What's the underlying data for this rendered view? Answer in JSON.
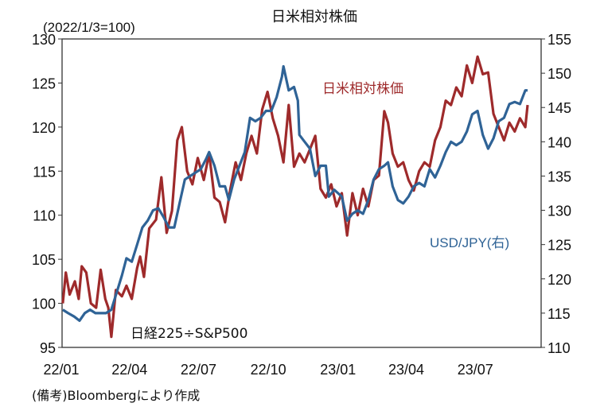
{
  "chart_data": {
    "type": "line",
    "title": "日米相対株価",
    "left_axis_label": "(2022/1/3=100)",
    "source_note": "(備考)Bloombergにより作成",
    "ylim_left": [
      95,
      130
    ],
    "ylim_right": [
      110,
      155
    ],
    "yticks_left": [
      "95",
      "100",
      "105",
      "110",
      "115",
      "120",
      "125",
      "130"
    ],
    "yticks_right": [
      "110",
      "115",
      "120",
      "125",
      "130",
      "135",
      "140",
      "145",
      "150",
      "155"
    ],
    "xticks": [
      {
        "label": "22/01",
        "date": "2022-01-01"
      },
      {
        "label": "22/04",
        "date": "2022-04-01"
      },
      {
        "label": "22/07",
        "date": "2022-07-01"
      },
      {
        "label": "22/10",
        "date": "2022-10-01"
      },
      {
        "label": "23/01",
        "date": "2023-01-01"
      },
      {
        "label": "23/04",
        "date": "2023-04-01"
      },
      {
        "label": "23/07",
        "date": "2023-07-01"
      }
    ],
    "xlim": [
      "2022-01-01",
      "2023-09-25"
    ],
    "grid": false,
    "series": [
      {
        "name": "日経225÷S&P500",
        "label": "日米相対株価",
        "axis": "left",
        "color": "#9e2a2b",
        "x": [
          "2022-01-03",
          "2022-01-07",
          "2022-01-12",
          "2022-01-19",
          "2022-01-24",
          "2022-01-28",
          "2022-02-03",
          "2022-02-09",
          "2022-02-16",
          "2022-02-22",
          "2022-02-28",
          "2022-03-04",
          "2022-03-08",
          "2022-03-14",
          "2022-03-22",
          "2022-03-28",
          "2022-04-04",
          "2022-04-11",
          "2022-04-15",
          "2022-04-20",
          "2022-04-27",
          "2022-05-06",
          "2022-05-13",
          "2022-05-20",
          "2022-05-27",
          "2022-06-03",
          "2022-06-09",
          "2022-06-16",
          "2022-06-23",
          "2022-06-30",
          "2022-07-08",
          "2022-07-15",
          "2022-07-22",
          "2022-07-29",
          "2022-08-05",
          "2022-08-12",
          "2022-08-19",
          "2022-08-26",
          "2022-09-02",
          "2022-09-09",
          "2022-09-16",
          "2022-09-23",
          "2022-09-30",
          "2022-10-07",
          "2022-10-14",
          "2022-10-21",
          "2022-10-28",
          "2022-11-04",
          "2022-11-11",
          "2022-11-18",
          "2022-11-25",
          "2022-12-02",
          "2022-12-09",
          "2022-12-16",
          "2022-12-23",
          "2022-12-30",
          "2023-01-06",
          "2023-01-13",
          "2023-01-20",
          "2023-01-27",
          "2023-02-03",
          "2023-02-10",
          "2023-02-17",
          "2023-02-24",
          "2023-03-03",
          "2023-03-08",
          "2023-03-14",
          "2023-03-21",
          "2023-03-28",
          "2023-04-04",
          "2023-04-11",
          "2023-04-18",
          "2023-04-25",
          "2023-05-02",
          "2023-05-09",
          "2023-05-16",
          "2023-05-23",
          "2023-05-30",
          "2023-06-06",
          "2023-06-13",
          "2023-06-20",
          "2023-06-27",
          "2023-07-04",
          "2023-07-11",
          "2023-07-18",
          "2023-07-25",
          "2023-08-01",
          "2023-08-08",
          "2023-08-15",
          "2023-08-22",
          "2023-08-29",
          "2023-09-05",
          "2023-09-08"
        ],
        "values": [
          100,
          103.5,
          101,
          102.5,
          100.5,
          104.2,
          103.5,
          100,
          99.5,
          103.8,
          100.5,
          99.5,
          96.2,
          101.5,
          100.8,
          102,
          100.5,
          104,
          105.3,
          103,
          108.5,
          109.5,
          114.3,
          108,
          110.5,
          118.5,
          120,
          115,
          113.5,
          116.5,
          114,
          117,
          112,
          111.5,
          109.2,
          113,
          116,
          114,
          117,
          119,
          117,
          122,
          124,
          121,
          119,
          116,
          122.5,
          115.5,
          117,
          116,
          117.5,
          119,
          113,
          112,
          113.5,
          111,
          112.5,
          107.7,
          112.5,
          110,
          113,
          111,
          114,
          114.5,
          121.8,
          120.5,
          117,
          115.5,
          116,
          114,
          112.8,
          115,
          116,
          115.5,
          118.5,
          120,
          123,
          122.5,
          124.5,
          123.5,
          127,
          125,
          128,
          126,
          126.2,
          121.5,
          120,
          118.5,
          120.5,
          119.5,
          121,
          120,
          122.5
        ]
      },
      {
        "name": "USD/JPY(右)",
        "label": "USD/JPY(右)",
        "axis": "right",
        "color": "#2f6396",
        "x": [
          "2022-01-03",
          "2022-01-10",
          "2022-01-18",
          "2022-01-25",
          "2022-02-01",
          "2022-02-08",
          "2022-02-15",
          "2022-02-22",
          "2022-03-01",
          "2022-03-08",
          "2022-03-15",
          "2022-03-22",
          "2022-03-28",
          "2022-04-04",
          "2022-04-11",
          "2022-04-18",
          "2022-04-25",
          "2022-05-02",
          "2022-05-09",
          "2022-05-16",
          "2022-05-23",
          "2022-05-30",
          "2022-06-06",
          "2022-06-13",
          "2022-06-20",
          "2022-06-27",
          "2022-07-04",
          "2022-07-11",
          "2022-07-15",
          "2022-07-22",
          "2022-07-29",
          "2022-08-05",
          "2022-08-10",
          "2022-08-17",
          "2022-08-24",
          "2022-08-31",
          "2022-09-07",
          "2022-09-14",
          "2022-09-21",
          "2022-09-28",
          "2022-10-05",
          "2022-10-12",
          "2022-10-19",
          "2022-10-21",
          "2022-10-28",
          "2022-11-04",
          "2022-11-09",
          "2022-11-11",
          "2022-11-18",
          "2022-11-25",
          "2022-12-02",
          "2022-12-09",
          "2022-12-16",
          "2022-12-20",
          "2022-12-27",
          "2023-01-06",
          "2023-01-13",
          "2023-01-20",
          "2023-01-27",
          "2023-02-03",
          "2023-02-10",
          "2023-02-17",
          "2023-02-24",
          "2023-03-03",
          "2023-03-08",
          "2023-03-14",
          "2023-03-21",
          "2023-03-28",
          "2023-04-04",
          "2023-04-11",
          "2023-04-18",
          "2023-04-25",
          "2023-05-02",
          "2023-05-09",
          "2023-05-16",
          "2023-05-23",
          "2023-05-30",
          "2023-06-06",
          "2023-06-13",
          "2023-06-20",
          "2023-06-27",
          "2023-07-04",
          "2023-07-11",
          "2023-07-18",
          "2023-07-25",
          "2023-08-01",
          "2023-08-08",
          "2023-08-15",
          "2023-08-22",
          "2023-08-29",
          "2023-09-05",
          "2023-09-08"
        ],
        "values": [
          115.5,
          115,
          114.5,
          113.9,
          115,
          115.5,
          115,
          115,
          115,
          115.5,
          118,
          120.5,
          123,
          122.5,
          125,
          127.5,
          128.5,
          130,
          130.3,
          129,
          127.5,
          127.5,
          131,
          134.5,
          135,
          135.5,
          136,
          137.5,
          138.5,
          136.5,
          133.5,
          133.5,
          131.5,
          134.5,
          136.5,
          138.5,
          143.5,
          143,
          143.5,
          144.5,
          144.5,
          146.5,
          149.5,
          151,
          147.5,
          148,
          146,
          141,
          140,
          139,
          135,
          136.5,
          136.5,
          132,
          133,
          132,
          128.5,
          129.5,
          130,
          129.5,
          131.5,
          134.5,
          136,
          136.5,
          137,
          133.5,
          131.5,
          131,
          132,
          133.5,
          134,
          133.5,
          136,
          134.8,
          136.5,
          138.5,
          140,
          139.5,
          140,
          141.5,
          144,
          144.5,
          141,
          139,
          140.5,
          143,
          143.5,
          145.5,
          145.8,
          145.5,
          147.5,
          147.5
        ]
      }
    ],
    "annotations": {
      "relative_stock": "日米相対株価",
      "usdjpy": "USD/JPY(右)",
      "nikkei_sp": "日経225÷S&P500"
    }
  }
}
